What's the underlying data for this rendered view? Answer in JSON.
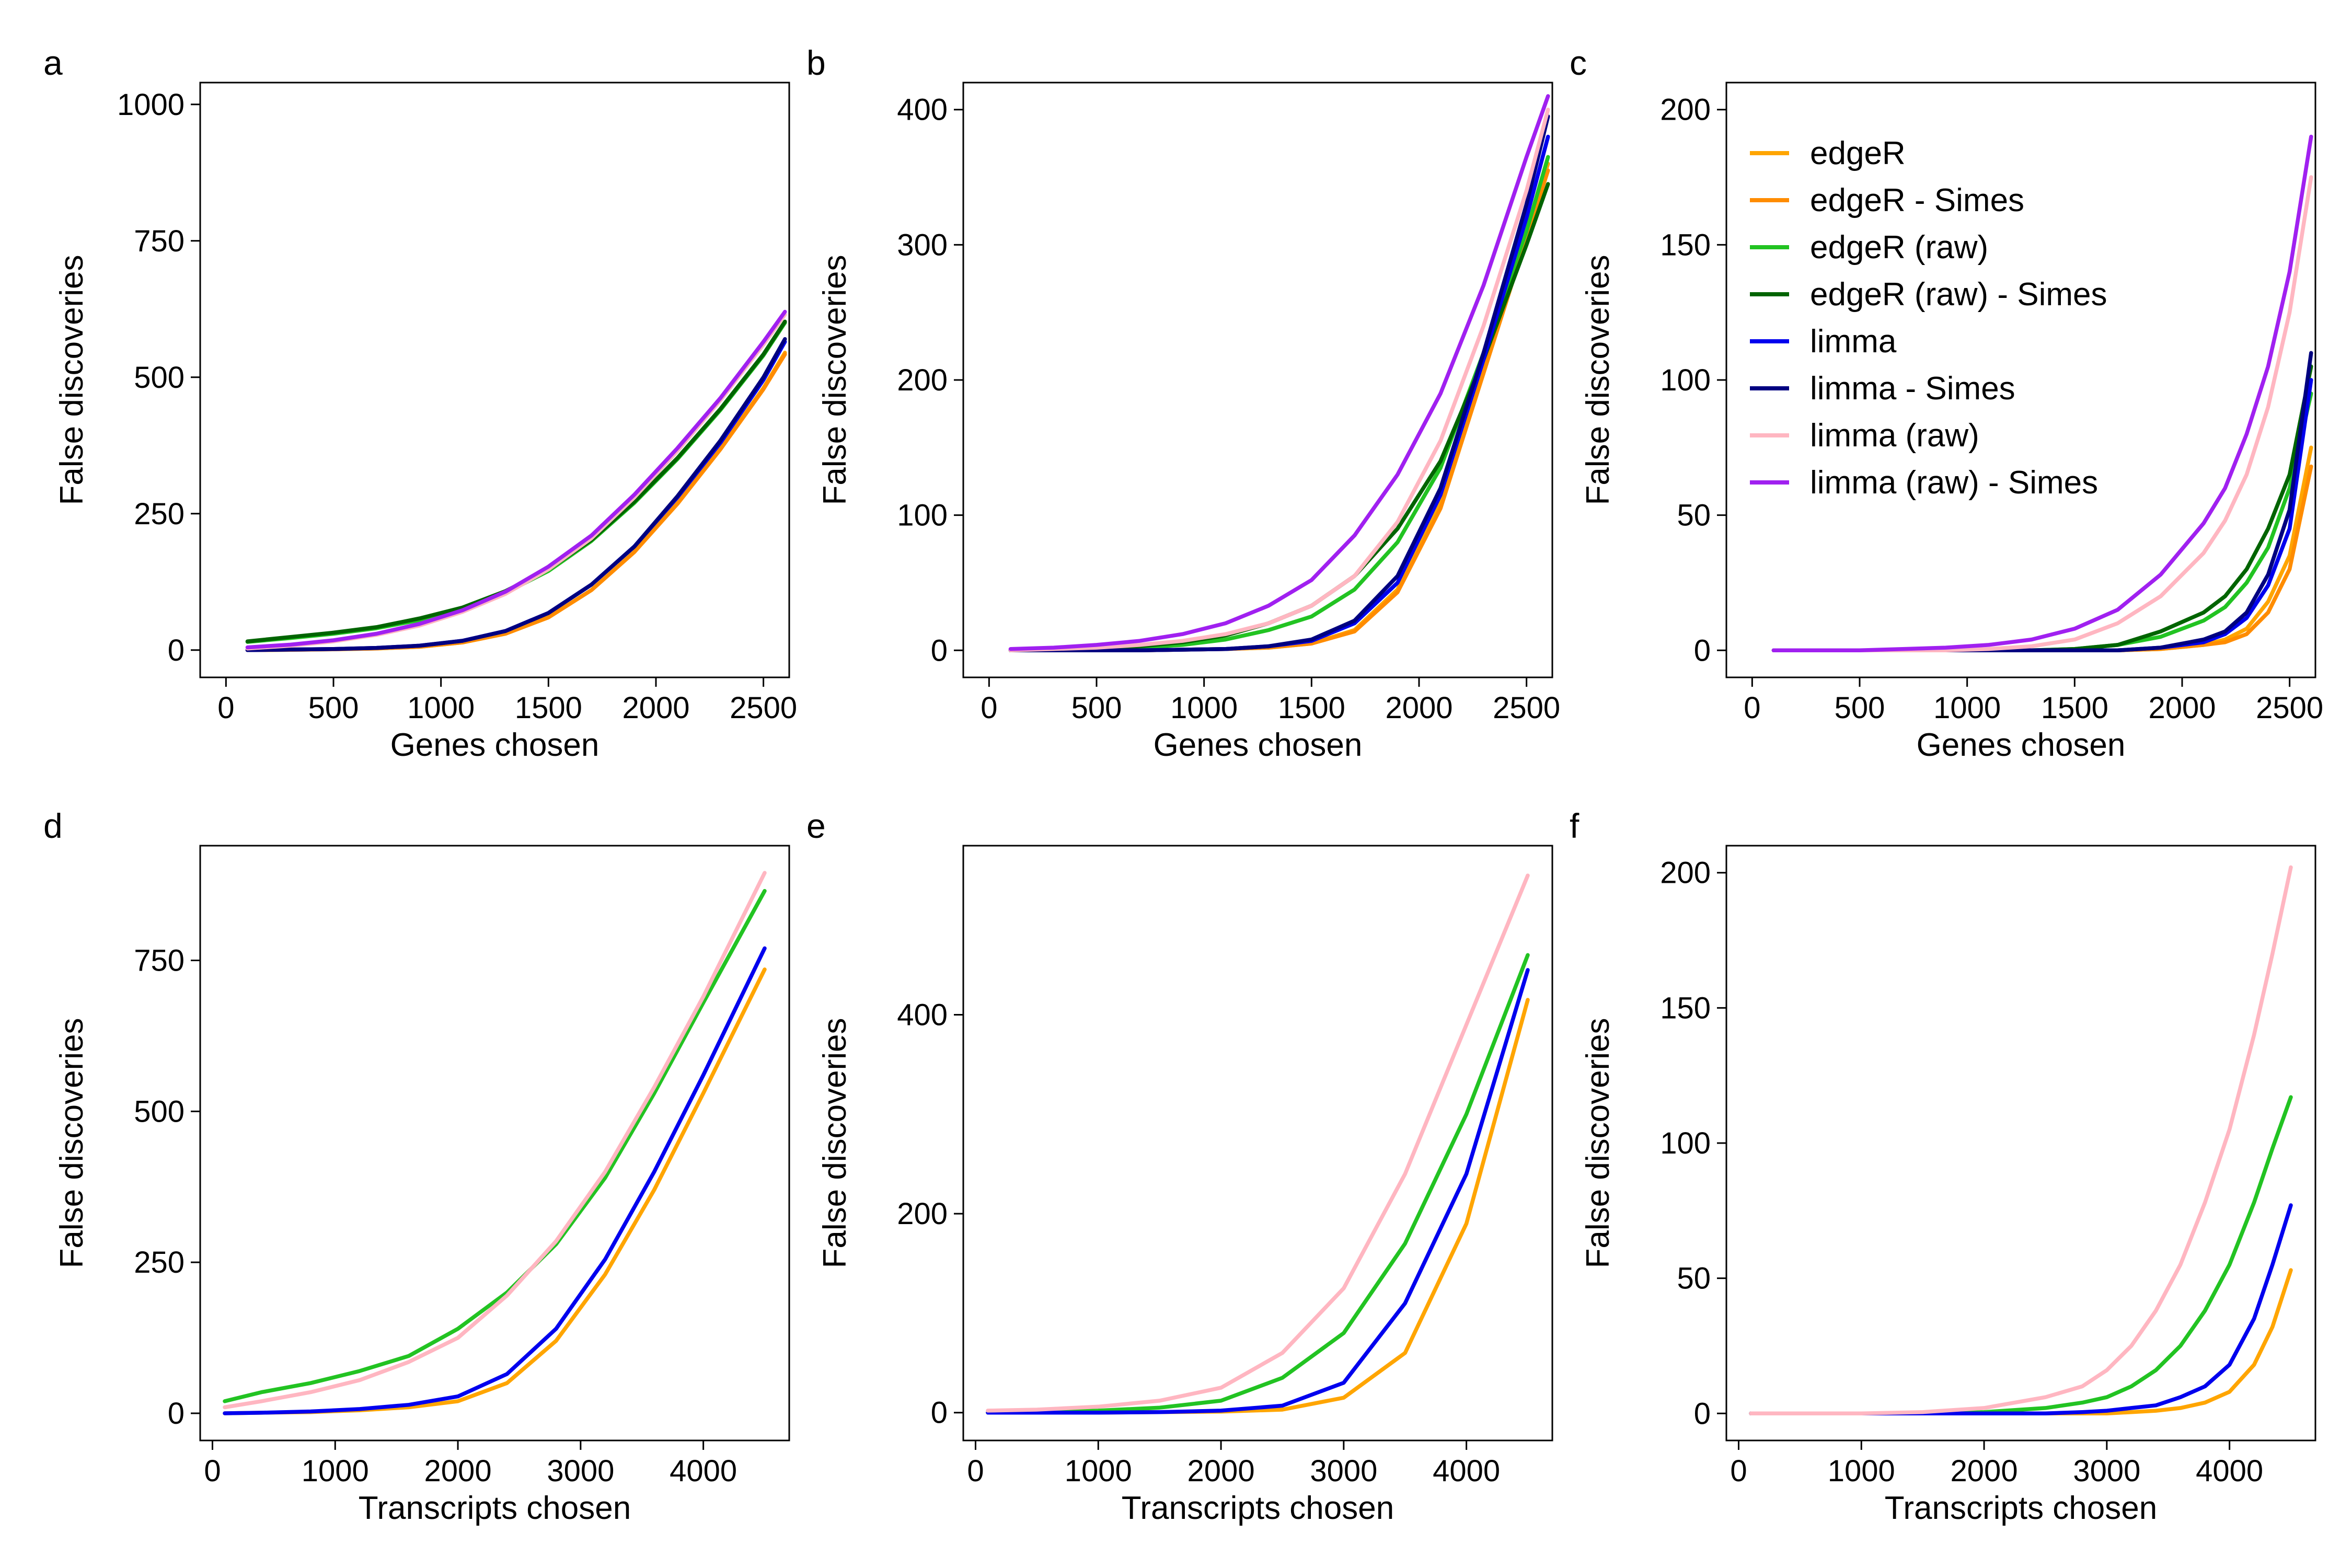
{
  "series_styles": {
    "edgeR": {
      "color": "#FFA500"
    },
    "edgeR - Simes": {
      "color": "#FF8C00"
    },
    "edgeR (raw)": {
      "color": "#22C322"
    },
    "edgeR (raw) - Simes": {
      "color": "#006400"
    },
    "limma": {
      "color": "#0000EE"
    },
    "limma - Simes": {
      "color": "#000080"
    },
    "limma (raw)": {
      "color": "#FFB6C1"
    },
    "limma (raw) - Simes": {
      "color": "#A020F0"
    }
  },
  "legend": {
    "panel": "c",
    "entries": [
      "edgeR",
      "edgeR - Simes",
      "edgeR (raw)",
      "edgeR (raw) - Simes",
      "limma",
      "limma - Simes",
      "limma (raw)",
      "limma (raw) - Simes"
    ]
  },
  "chart_data": [
    {
      "panel": "a",
      "type": "line",
      "xlabel": "Genes chosen",
      "ylabel": "False discoveries",
      "xlim": [
        -120,
        2620
      ],
      "ylim": [
        -50,
        1040
      ],
      "xticks": [
        0,
        500,
        1000,
        1500,
        2000,
        2500
      ],
      "yticks": [
        0,
        250,
        500,
        750,
        1000
      ],
      "x": [
        100,
        300,
        500,
        700,
        900,
        1100,
        1300,
        1500,
        1700,
        1900,
        2100,
        2300,
        2500,
        2600
      ],
      "series": [
        {
          "name": "edgeR",
          "values": [
            0,
            0.5,
            1.5,
            3,
            6,
            14,
            30,
            60,
            110,
            180,
            270,
            370,
            480,
            545
          ]
        },
        {
          "name": "edgeR - Simes",
          "values": [
            0,
            0.5,
            1.5,
            3,
            6,
            14,
            30,
            60,
            110,
            180,
            268,
            368,
            478,
            542
          ]
        },
        {
          "name": "edgeR (raw)",
          "values": [
            15,
            22,
            30,
            40,
            55,
            75,
            105,
            145,
            200,
            270,
            350,
            440,
            540,
            600
          ]
        },
        {
          "name": "edgeR (raw) - Simes",
          "values": [
            16,
            24,
            32,
            42,
            58,
            78,
            108,
            148,
            202,
            272,
            352,
            442,
            542,
            602
          ]
        },
        {
          "name": "limma",
          "values": [
            0,
            1,
            2,
            4,
            8,
            17,
            35,
            68,
            120,
            190,
            280,
            380,
            495,
            565
          ]
        },
        {
          "name": "limma - Simes",
          "values": [
            0,
            1,
            2,
            4,
            8,
            17,
            35,
            68,
            120,
            190,
            282,
            384,
            500,
            570
          ]
        },
        {
          "name": "limma (raw)",
          "values": [
            3,
            8,
            16,
            28,
            45,
            70,
            103,
            148,
            205,
            280,
            365,
            458,
            560,
            615
          ]
        },
        {
          "name": "limma (raw) - Simes",
          "values": [
            5,
            10,
            18,
            30,
            48,
            73,
            107,
            153,
            210,
            285,
            370,
            462,
            565,
            620
          ]
        }
      ]
    },
    {
      "panel": "b",
      "type": "line",
      "xlabel": "Genes chosen",
      "ylabel": "False discoveries",
      "xlim": [
        -120,
        2620
      ],
      "ylim": [
        -20,
        420
      ],
      "xticks": [
        0,
        500,
        1000,
        1500,
        2000,
        2500
      ],
      "yticks": [
        0,
        100,
        200,
        300,
        400
      ],
      "x": [
        100,
        300,
        500,
        700,
        900,
        1100,
        1300,
        1500,
        1700,
        1900,
        2100,
        2300,
        2500,
        2600
      ],
      "series": [
        {
          "name": "edgeR",
          "values": [
            0,
            0,
            0,
            0,
            0.5,
            1,
            2,
            5,
            15,
            45,
            110,
            210,
            310,
            360
          ]
        },
        {
          "name": "edgeR - Simes",
          "values": [
            0,
            0,
            0,
            0,
            0.5,
            1,
            2,
            5,
            14,
            43,
            105,
            205,
            305,
            355
          ]
        },
        {
          "name": "edgeR (raw)",
          "values": [
            0,
            0.5,
            1,
            2,
            4,
            8,
            15,
            25,
            45,
            80,
            135,
            220,
            310,
            365
          ]
        },
        {
          "name": "edgeR (raw) - Simes",
          "values": [
            0,
            0.5,
            1.5,
            3,
            6,
            11,
            20,
            33,
            55,
            90,
            140,
            215,
            300,
            345
          ]
        },
        {
          "name": "limma",
          "values": [
            0,
            0,
            0,
            0,
            0.5,
            1,
            3,
            7,
            20,
            50,
            115,
            215,
            320,
            380
          ]
        },
        {
          "name": "limma - Simes",
          "values": [
            0,
            0,
            0,
            0,
            0.5,
            1,
            3,
            8,
            22,
            55,
            120,
            220,
            330,
            395
          ]
        },
        {
          "name": "limma (raw)",
          "values": [
            0,
            1,
            2,
            4,
            7,
            12,
            20,
            33,
            55,
            95,
            155,
            240,
            340,
            400
          ]
        },
        {
          "name": "limma (raw) - Simes",
          "values": [
            1,
            2,
            4,
            7,
            12,
            20,
            33,
            52,
            85,
            130,
            190,
            270,
            365,
            410
          ]
        }
      ]
    },
    {
      "panel": "c",
      "type": "line",
      "xlabel": "Genes chosen",
      "ylabel": "False discoveries",
      "xlim": [
        -120,
        2620
      ],
      "ylim": [
        -10,
        210
      ],
      "xticks": [
        0,
        500,
        1000,
        1500,
        2000,
        2500
      ],
      "yticks": [
        0,
        50,
        100,
        150,
        200
      ],
      "x": [
        100,
        300,
        500,
        700,
        900,
        1100,
        1300,
        1500,
        1700,
        1900,
        2100,
        2200,
        2300,
        2400,
        2500,
        2600
      ],
      "series": [
        {
          "name": "edgeR",
          "values": [
            0,
            0,
            0,
            0,
            0,
            0,
            0,
            0,
            0,
            0.5,
            2,
            4,
            8,
            18,
            35,
            75
          ]
        },
        {
          "name": "edgeR - Simes",
          "values": [
            0,
            0,
            0,
            0,
            0,
            0,
            0,
            0,
            0,
            0.5,
            2,
            3,
            6,
            14,
            30,
            68
          ]
        },
        {
          "name": "edgeR (raw)",
          "values": [
            0,
            0,
            0,
            0,
            0,
            0,
            0,
            0.5,
            2,
            5,
            11,
            16,
            25,
            38,
            60,
            95
          ]
        },
        {
          "name": "edgeR (raw) - Simes",
          "values": [
            0,
            0,
            0,
            0,
            0,
            0,
            0,
            0.5,
            2,
            7,
            14,
            20,
            30,
            45,
            65,
            105
          ]
        },
        {
          "name": "limma",
          "values": [
            0,
            0,
            0,
            0,
            0,
            0,
            0,
            0,
            0,
            1,
            3,
            6,
            12,
            24,
            45,
            100
          ]
        },
        {
          "name": "limma - Simes",
          "values": [
            0,
            0,
            0,
            0,
            0,
            0,
            0,
            0,
            0,
            1,
            4,
            7,
            14,
            28,
            52,
            110
          ]
        },
        {
          "name": "limma (raw)",
          "values": [
            0,
            0,
            0,
            0,
            0,
            0.5,
            1.5,
            4,
            10,
            20,
            36,
            48,
            65,
            90,
            125,
            175
          ]
        },
        {
          "name": "limma (raw) - Simes",
          "values": [
            0,
            0,
            0,
            0.5,
            1,
            2,
            4,
            8,
            15,
            28,
            47,
            60,
            80,
            105,
            140,
            190
          ]
        }
      ]
    },
    {
      "panel": "d",
      "type": "line",
      "xlabel": "Transcripts chosen",
      "ylabel": "False discoveries",
      "xlim": [
        -100,
        4700
      ],
      "ylim": [
        -45,
        940
      ],
      "xticks": [
        0,
        1000,
        2000,
        3000,
        4000
      ],
      "yticks": [
        0,
        250,
        500,
        750
      ],
      "x": [
        100,
        400,
        800,
        1200,
        1600,
        2000,
        2400,
        2800,
        3200,
        3600,
        4000,
        4500
      ],
      "series": [
        {
          "name": "edgeR",
          "values": [
            0,
            1,
            2,
            5,
            10,
            20,
            50,
            120,
            230,
            370,
            530,
            735
          ]
        },
        {
          "name": "edgeR (raw)",
          "values": [
            20,
            35,
            50,
            70,
            95,
            140,
            200,
            280,
            390,
            530,
            680,
            865
          ]
        },
        {
          "name": "limma",
          "values": [
            0,
            1,
            3,
            7,
            14,
            28,
            65,
            140,
            255,
            400,
            560,
            770
          ]
        },
        {
          "name": "limma (raw)",
          "values": [
            10,
            20,
            35,
            55,
            85,
            125,
            195,
            285,
            400,
            540,
            690,
            895
          ]
        }
      ]
    },
    {
      "panel": "e",
      "type": "line",
      "xlabel": "Transcripts chosen",
      "ylabel": "False discoveries",
      "xlim": [
        -100,
        4700
      ],
      "ylim": [
        -28,
        570
      ],
      "xticks": [
        0,
        1000,
        2000,
        3000,
        4000
      ],
      "yticks": [
        0,
        200,
        400
      ],
      "x": [
        100,
        500,
        1000,
        1500,
        2000,
        2500,
        3000,
        3500,
        4000,
        4500
      ],
      "series": [
        {
          "name": "edgeR",
          "values": [
            0,
            0,
            0,
            0.5,
            1,
            3,
            15,
            60,
            190,
            415
          ]
        },
        {
          "name": "edgeR (raw)",
          "values": [
            0,
            1,
            2,
            5,
            12,
            35,
            80,
            170,
            300,
            460
          ]
        },
        {
          "name": "limma",
          "values": [
            0,
            0,
            0,
            0.5,
            2,
            7,
            30,
            110,
            240,
            445
          ]
        },
        {
          "name": "limma (raw)",
          "values": [
            2,
            3,
            6,
            12,
            25,
            60,
            125,
            240,
            390,
            540
          ]
        }
      ]
    },
    {
      "panel": "f",
      "type": "line",
      "xlabel": "Transcripts chosen",
      "ylabel": "False discoveries",
      "xlim": [
        -100,
        4700
      ],
      "ylim": [
        -10,
        210
      ],
      "xticks": [
        0,
        1000,
        2000,
        3000,
        4000
      ],
      "yticks": [
        0,
        50,
        100,
        150,
        200
      ],
      "x": [
        100,
        500,
        1000,
        1500,
        2000,
        2500,
        2800,
        3000,
        3200,
        3400,
        3600,
        3800,
        4000,
        4200,
        4350,
        4500
      ],
      "series": [
        {
          "name": "edgeR",
          "values": [
            0,
            0,
            0,
            0,
            0,
            0,
            0,
            0,
            0.5,
            1,
            2,
            4,
            8,
            18,
            32,
            53
          ]
        },
        {
          "name": "edgeR (raw)",
          "values": [
            0,
            0,
            0,
            0,
            0.5,
            2,
            4,
            6,
            10,
            16,
            25,
            38,
            55,
            78,
            98,
            117
          ]
        },
        {
          "name": "limma",
          "values": [
            0,
            0,
            0,
            0,
            0,
            0,
            0.5,
            1,
            2,
            3,
            6,
            10,
            18,
            35,
            55,
            77
          ]
        },
        {
          "name": "limma (raw)",
          "values": [
            0,
            0,
            0,
            0.5,
            2,
            6,
            10,
            16,
            25,
            38,
            55,
            78,
            105,
            140,
            170,
            202
          ]
        }
      ]
    }
  ]
}
